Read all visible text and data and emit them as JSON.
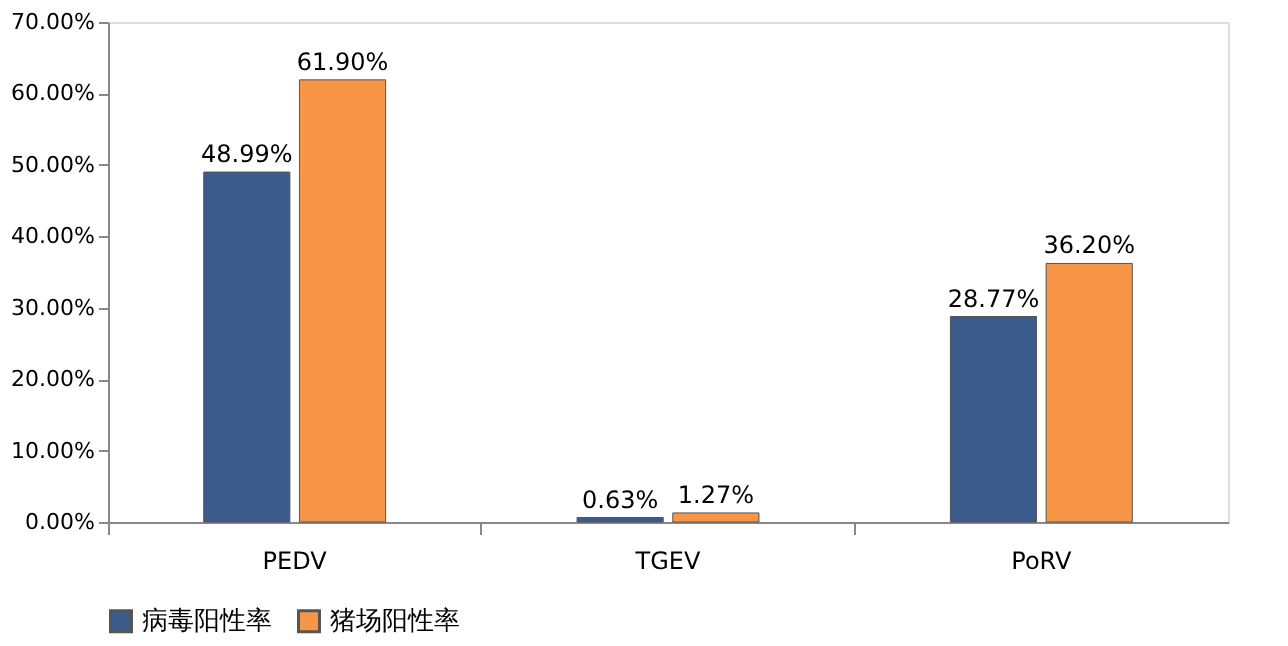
{
  "chart_data": {
    "type": "bar",
    "categories": [
      "PEDV",
      "TGEV",
      "PoRV"
    ],
    "series": [
      {
        "name": "病毒阳性率",
        "color": "#3a5b8c",
        "values": [
          48.99,
          0.63,
          28.77
        ],
        "value_labels": [
          "48.99%",
          "0.63%",
          "28.77%"
        ]
      },
      {
        "name": "猪场阳性率",
        "color": "#f79646",
        "values": [
          61.9,
          1.27,
          36.2
        ],
        "value_labels": [
          "61.90%",
          "1.27%",
          "36.20%"
        ]
      }
    ],
    "ylim": [
      0,
      70
    ],
    "yticks": [
      {
        "value": 0,
        "label": "0.00%"
      },
      {
        "value": 10,
        "label": "10.00%"
      },
      {
        "value": 20,
        "label": "20.00%"
      },
      {
        "value": 30,
        "label": "30.00%"
      },
      {
        "value": 40,
        "label": "40.00%"
      },
      {
        "value": 50,
        "label": "50.00%"
      },
      {
        "value": 60,
        "label": "60.00%"
      },
      {
        "value": 70,
        "label": "70.00%"
      }
    ],
    "grid": false,
    "legend": "bottom"
  }
}
